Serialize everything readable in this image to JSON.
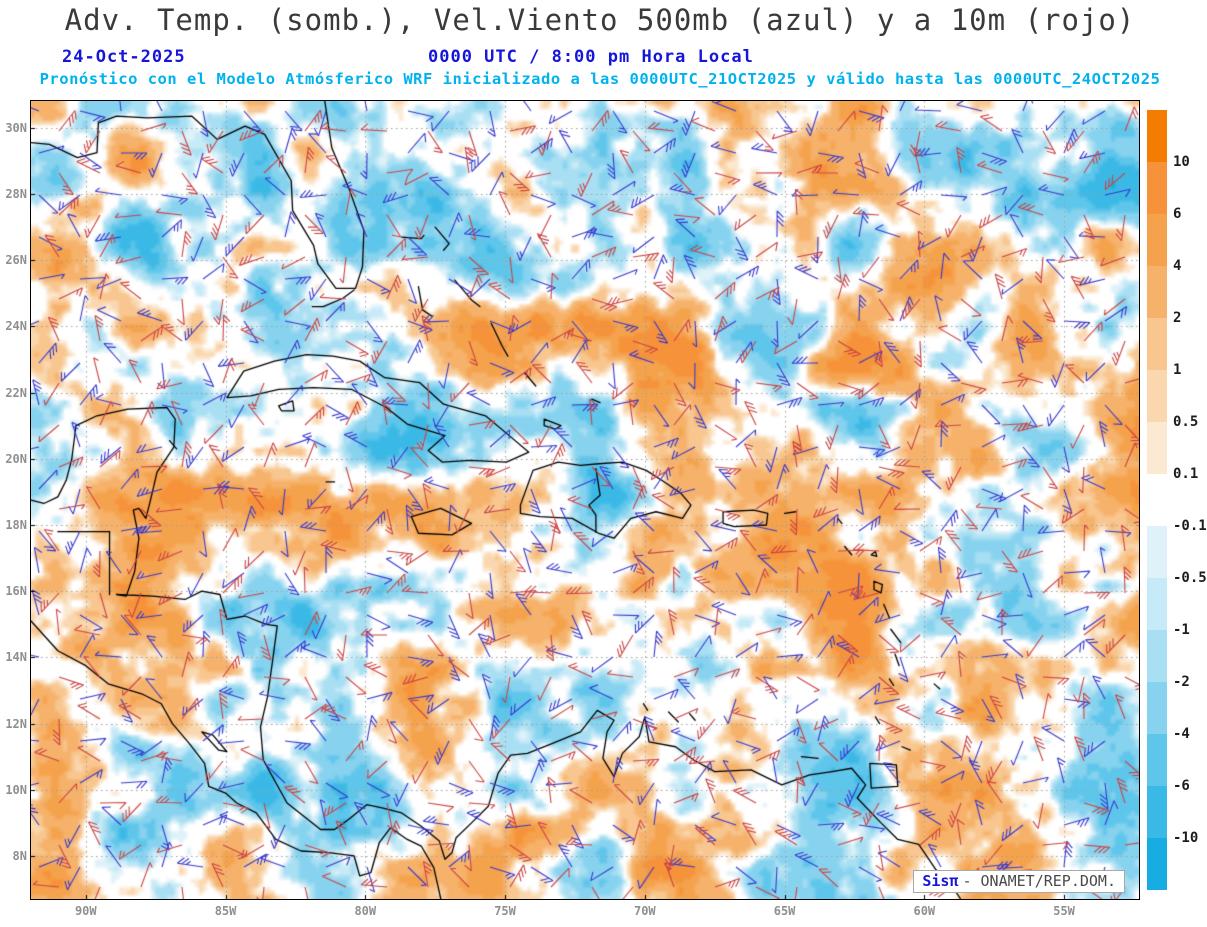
{
  "header": {
    "title": "Adv. Temp. (somb.), Vel.Viento 500mb (azul) y a 10m (rojo)",
    "date": "24-Oct-2025",
    "time": "0000 UTC / 8:00 pm Hora Local",
    "model_info": "Pronóstico con el Modelo Atmósferico WRF inicializado a las 0000UTC_21OCT2025 y válido hasta las  0000UTC_24OCT2025"
  },
  "watermark": {
    "brand": "Sisπ",
    "text": "- ONAMET/REP.DOM."
  },
  "chart_data": {
    "type": "heatmap",
    "title": "Adv. Temp. (somb.), Vel.Viento 500mb (azul) y a 10m (rojo)",
    "shaded_variable": "Adv. Temp. (somb.)",
    "series": [
      {
        "name": "Vel.Viento 500mb (azul)",
        "style": "wind-barbs",
        "color": "#3939cf"
      },
      {
        "name": "Viento a 10m (rojo)",
        "style": "wind-barbs",
        "color": "#cc4444"
      }
    ],
    "lat_ticks": [
      "30N",
      "28N",
      "26N",
      "24N",
      "22N",
      "20N",
      "18N",
      "16N",
      "14N",
      "12N",
      "10N",
      "8N"
    ],
    "lon_ticks": [
      "90W",
      "85W",
      "80W",
      "75W",
      "70W",
      "65W",
      "60W",
      "55W"
    ],
    "lat_range": [
      6.7,
      30.81
    ],
    "lon_range": [
      -91.96,
      -52.32
    ],
    "grid": true,
    "grid_color": "#a0a0a0",
    "seed": 20251024,
    "colorbar": {
      "levels": [
        10,
        6,
        4,
        2,
        1,
        0.5,
        0.1,
        -0.1,
        -0.5,
        -1,
        -2,
        -4,
        -6,
        -10
      ],
      "colors": [
        "#f47c00",
        "#f5923a",
        "#f5a24c",
        "#f6b26b",
        "#f8c68e",
        "#fad7ae",
        "#fce9d2",
        "#ffffff",
        "#dff2fa",
        "#c6eaf7",
        "#a9dff3",
        "#87d3ef",
        "#5fc6eb",
        "#3bb9e6",
        "#17ace2"
      ]
    },
    "coastlines": [
      [
        [
          -81.45,
          30.81
        ],
        [
          -81.2,
          29.4
        ],
        [
          -80.6,
          28.2
        ],
        [
          -80.05,
          26.9
        ],
        [
          -80.1,
          25.8
        ],
        [
          -80.35,
          25.15
        ],
        [
          -81.05,
          25.15
        ],
        [
          -81.7,
          25.9
        ],
        [
          -81.85,
          26.45
        ],
        [
          -82.6,
          27.5
        ],
        [
          -82.65,
          28.4
        ],
        [
          -83.6,
          29.8
        ],
        [
          -84.3,
          30.05
        ],
        [
          -85.3,
          29.65
        ],
        [
          -86.2,
          30.35
        ],
        [
          -87.8,
          30.3
        ],
        [
          -88.9,
          30.35
        ],
        [
          -89.55,
          30.15
        ],
        [
          -89.6,
          29.25
        ],
        [
          -90.3,
          29.1
        ],
        [
          -91.3,
          29.5
        ],
        [
          -91.96,
          29.55
        ]
      ],
      [
        [
          -80.4,
          25.1
        ],
        [
          -80.8,
          24.85
        ],
        [
          -81.5,
          24.6
        ],
        [
          -81.9,
          24.6
        ]
      ],
      [
        [
          -91.96,
          18.75
        ],
        [
          -91.5,
          18.65
        ],
        [
          -91.0,
          18.85
        ],
        [
          -90.7,
          19.35
        ],
        [
          -90.5,
          20.0
        ],
        [
          -90.35,
          21.0
        ],
        [
          -89.6,
          21.3
        ],
        [
          -88.5,
          21.5
        ],
        [
          -87.1,
          21.55
        ],
        [
          -86.8,
          21.2
        ],
        [
          -86.85,
          20.35
        ],
        [
          -87.45,
          19.6
        ],
        [
          -87.7,
          18.7
        ],
        [
          -87.85,
          18.2
        ],
        [
          -88.1,
          18.5
        ],
        [
          -88.3,
          18.45
        ],
        [
          -88.1,
          17.6
        ],
        [
          -88.25,
          16.6
        ],
        [
          -88.55,
          15.85
        ],
        [
          -88.9,
          15.9
        ],
        [
          -87.6,
          15.85
        ],
        [
          -86.45,
          15.75
        ],
        [
          -85.85,
          16.0
        ],
        [
          -85.2,
          15.9
        ],
        [
          -84.95,
          15.15
        ],
        [
          -84.3,
          15.25
        ],
        [
          -83.55,
          15.0
        ],
        [
          -83.15,
          14.95
        ],
        [
          -83.3,
          14.0
        ],
        [
          -83.5,
          12.8
        ],
        [
          -83.75,
          11.9
        ],
        [
          -83.65,
          10.9
        ],
        [
          -82.8,
          9.6
        ],
        [
          -82.2,
          9.2
        ],
        [
          -81.6,
          8.8
        ],
        [
          -81.1,
          8.8
        ],
        [
          -80.6,
          9.1
        ],
        [
          -79.95,
          9.55
        ],
        [
          -79.4,
          9.45
        ],
        [
          -78.7,
          9.3
        ],
        [
          -78.0,
          8.9
        ],
        [
          -77.35,
          8.45
        ],
        [
          -77.15,
          7.9
        ],
        [
          -76.9,
          8.1
        ],
        [
          -76.75,
          8.55
        ],
        [
          -76.2,
          9.0
        ],
        [
          -75.6,
          9.5
        ],
        [
          -75.25,
          10.5
        ],
        [
          -74.8,
          11.05
        ],
        [
          -74.2,
          11.1
        ],
        [
          -73.3,
          11.4
        ],
        [
          -72.3,
          11.75
        ],
        [
          -71.7,
          12.4
        ],
        [
          -71.1,
          12.1
        ],
        [
          -71.35,
          11.75
        ],
        [
          -71.5,
          10.95
        ],
        [
          -71.1,
          10.4
        ],
        [
          -70.8,
          11.1
        ],
        [
          -70.2,
          11.6
        ],
        [
          -70.0,
          12.2
        ],
        [
          -69.85,
          11.45
        ],
        [
          -68.9,
          11.3
        ],
        [
          -68.25,
          10.9
        ],
        [
          -67.5,
          10.55
        ],
        [
          -66.2,
          10.6
        ],
        [
          -65.1,
          10.15
        ],
        [
          -64.1,
          10.45
        ],
        [
          -63.3,
          10.55
        ],
        [
          -62.6,
          10.65
        ],
        [
          -62.1,
          10.15
        ],
        [
          -62.4,
          9.75
        ],
        [
          -61.55,
          9.0
        ],
        [
          -60.95,
          8.5
        ],
        [
          -60.2,
          8.35
        ],
        [
          -59.6,
          7.6
        ],
        [
          -58.9,
          6.95
        ],
        [
          -58.7,
          6.7
        ]
      ],
      [
        [
          -91.96,
          15.1
        ],
        [
          -91.0,
          14.2
        ],
        [
          -90.0,
          13.75
        ],
        [
          -89.2,
          13.2
        ],
        [
          -88.0,
          12.9
        ],
        [
          -87.3,
          12.6
        ],
        [
          -86.9,
          12.0
        ],
        [
          -86.3,
          11.4
        ],
        [
          -85.75,
          10.8
        ],
        [
          -85.6,
          10.1
        ],
        [
          -85.0,
          9.9
        ],
        [
          -84.6,
          9.6
        ],
        [
          -83.9,
          9.3
        ],
        [
          -83.2,
          8.5
        ],
        [
          -82.3,
          8.15
        ],
        [
          -81.3,
          8.1
        ],
        [
          -80.4,
          8.0
        ],
        [
          -80.2,
          7.4
        ],
        [
          -79.8,
          7.5
        ],
        [
          -79.5,
          8.4
        ],
        [
          -79.1,
          8.85
        ],
        [
          -78.5,
          8.5
        ],
        [
          -78.0,
          8.3
        ],
        [
          -77.55,
          7.65
        ],
        [
          -77.35,
          6.9
        ],
        [
          -77.3,
          6.7
        ]
      ],
      [
        [
          -84.95,
          21.85
        ],
        [
          -84.35,
          22.65
        ],
        [
          -83.25,
          22.95
        ],
        [
          -82.1,
          23.15
        ],
        [
          -81.15,
          23.1
        ],
        [
          -80.2,
          22.95
        ],
        [
          -79.3,
          22.45
        ],
        [
          -78.05,
          22.3
        ],
        [
          -77.2,
          21.65
        ],
        [
          -75.7,
          21.3
        ],
        [
          -74.85,
          20.7
        ],
        [
          -74.15,
          20.2
        ],
        [
          -74.95,
          19.9
        ],
        [
          -76.25,
          19.95
        ],
        [
          -77.25,
          19.9
        ],
        [
          -77.75,
          20.25
        ],
        [
          -77.15,
          20.7
        ],
        [
          -78.5,
          21.05
        ],
        [
          -79.25,
          21.55
        ],
        [
          -80.5,
          22.1
        ],
        [
          -81.85,
          22.15
        ],
        [
          -83.1,
          22.1
        ],
        [
          -84.1,
          21.9
        ],
        [
          -84.95,
          21.85
        ]
      ],
      [
        [
          -83.1,
          21.6
        ],
        [
          -82.6,
          21.75
        ],
        [
          -82.55,
          21.45
        ],
        [
          -83.0,
          21.45
        ],
        [
          -83.1,
          21.6
        ]
      ],
      [
        [
          -78.35,
          18.25
        ],
        [
          -77.3,
          18.5
        ],
        [
          -76.2,
          18.05
        ],
        [
          -76.9,
          17.7
        ],
        [
          -78.1,
          17.75
        ],
        [
          -78.35,
          18.25
        ]
      ],
      [
        [
          -74.45,
          18.6
        ],
        [
          -74.0,
          19.65
        ],
        [
          -73.1,
          19.9
        ],
        [
          -72.3,
          19.8
        ],
        [
          -71.65,
          19.85
        ],
        [
          -70.8,
          19.9
        ],
        [
          -69.95,
          19.65
        ],
        [
          -69.3,
          19.3
        ],
        [
          -68.7,
          18.95
        ],
        [
          -68.35,
          18.6
        ],
        [
          -68.65,
          18.2
        ],
        [
          -69.6,
          18.4
        ],
        [
          -70.5,
          18.2
        ],
        [
          -71.1,
          17.6
        ],
        [
          -71.65,
          17.75
        ],
        [
          -72.6,
          18.2
        ],
        [
          -73.75,
          18.25
        ],
        [
          -74.45,
          18.35
        ],
        [
          -74.45,
          18.6
        ]
      ],
      [
        [
          -71.75,
          19.7
        ],
        [
          -71.6,
          18.9
        ],
        [
          -72.0,
          18.6
        ],
        [
          -71.75,
          18.3
        ],
        [
          -71.75,
          17.78
        ]
      ],
      [
        [
          -67.2,
          18.4
        ],
        [
          -66.1,
          18.45
        ],
        [
          -65.6,
          18.35
        ],
        [
          -65.65,
          18.0
        ],
        [
          -66.8,
          17.95
        ],
        [
          -67.2,
          18.05
        ],
        [
          -67.2,
          18.4
        ]
      ],
      [
        [
          -78.7,
          26.7
        ],
        [
          -78.0,
          26.65
        ],
        [
          -77.9,
          26.75
        ]
      ],
      [
        [
          -77.5,
          27.0
        ],
        [
          -77.0,
          26.5
        ],
        [
          -77.2,
          26.3
        ]
      ],
      [
        [
          -78.1,
          25.2
        ],
        [
          -77.95,
          24.5
        ],
        [
          -77.6,
          24.3
        ]
      ],
      [
        [
          -76.8,
          25.4
        ],
        [
          -76.2,
          24.8
        ],
        [
          -75.9,
          24.6
        ]
      ],
      [
        [
          -75.5,
          24.1
        ],
        [
          -75.1,
          23.4
        ],
        [
          -74.9,
          23.1
        ]
      ],
      [
        [
          -74.3,
          22.6
        ],
        [
          -73.9,
          22.2
        ]
      ],
      [
        [
          -73.6,
          21.2
        ],
        [
          -73.0,
          21.0
        ],
        [
          -73.2,
          20.9
        ],
        [
          -73.6,
          21.0
        ],
        [
          -73.6,
          21.2
        ]
      ],
      [
        [
          -71.9,
          21.8
        ],
        [
          -71.6,
          21.7
        ]
      ],
      [
        [
          -81.4,
          19.3
        ],
        [
          -81.1,
          19.3
        ]
      ],
      [
        [
          -65.0,
          18.35
        ],
        [
          -64.6,
          18.4
        ]
      ],
      [
        [
          -63.1,
          18.2
        ],
        [
          -62.95,
          18.05
        ]
      ],
      [
        [
          -62.85,
          17.35
        ],
        [
          -62.6,
          17.1
        ]
      ],
      [
        [
          -61.9,
          17.1
        ],
        [
          -61.7,
          17.05
        ],
        [
          -61.75,
          17.2
        ],
        [
          -61.9,
          17.1
        ]
      ],
      [
        [
          -61.8,
          16.3
        ],
        [
          -61.5,
          16.2
        ],
        [
          -61.55,
          15.95
        ],
        [
          -61.8,
          16.05
        ],
        [
          -61.8,
          16.3
        ]
      ],
      [
        [
          -61.45,
          15.6
        ],
        [
          -61.25,
          15.2
        ]
      ],
      [
        [
          -61.2,
          14.85
        ],
        [
          -60.85,
          14.45
        ]
      ],
      [
        [
          -61.05,
          14.1
        ],
        [
          -60.9,
          13.75
        ]
      ],
      [
        [
          -61.25,
          13.35
        ],
        [
          -61.1,
          13.15
        ]
      ],
      [
        [
          -61.75,
          12.2
        ],
        [
          -61.6,
          12.0
        ]
      ],
      [
        [
          -59.65,
          13.2
        ],
        [
          -59.45,
          13.05
        ]
      ],
      [
        [
          -60.8,
          11.3
        ],
        [
          -60.5,
          11.2
        ]
      ],
      [
        [
          -61.95,
          10.8
        ],
        [
          -61.0,
          10.75
        ],
        [
          -60.95,
          10.1
        ],
        [
          -61.9,
          10.05
        ],
        [
          -61.95,
          10.8
        ]
      ],
      [
        [
          -64.4,
          11.0
        ],
        [
          -63.8,
          10.95
        ]
      ],
      [
        [
          -69.15,
          12.35
        ],
        [
          -68.8,
          12.05
        ]
      ],
      [
        [
          -70.05,
          12.6
        ],
        [
          -69.9,
          12.4
        ]
      ],
      [
        [
          -68.4,
          12.3
        ],
        [
          -68.2,
          12.1
        ]
      ],
      [
        [
          -87.0,
          20.55
        ],
        [
          -86.75,
          20.3
        ]
      ],
      [
        [
          -91.0,
          17.8
        ],
        [
          -89.15,
          17.8
        ]
      ],
      [
        [
          -89.15,
          17.8
        ],
        [
          -89.15,
          15.9
        ]
      ],
      [
        [
          -85.85,
          11.75
        ],
        [
          -85.25,
          11.2
        ],
        [
          -84.95,
          11.15
        ],
        [
          -85.45,
          11.65
        ],
        [
          -85.85,
          11.75
        ]
      ]
    ]
  }
}
